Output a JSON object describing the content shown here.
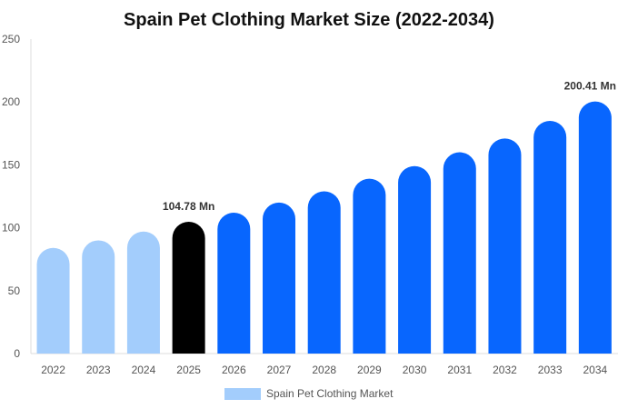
{
  "chart_data": {
    "type": "bar",
    "title": "Spain Pet Clothing Market Size (2022-2034)",
    "xlabel": "",
    "ylabel": "",
    "categories": [
      "2022",
      "2023",
      "2024",
      "2025",
      "2026",
      "2027",
      "2028",
      "2029",
      "2030",
      "2031",
      "2032",
      "2033",
      "2034"
    ],
    "series": [
      {
        "name": "Spain Pet Clothing Market",
        "values": [
          84,
          90,
          97,
          104.78,
          112,
          120,
          129,
          139,
          149,
          160,
          171,
          185,
          200.41
        ]
      }
    ],
    "ylim": [
      0,
      250
    ],
    "yticks": [
      0,
      50,
      100,
      150,
      200,
      250
    ],
    "data_labels": [
      {
        "index": 3,
        "text": "104.78 Mn"
      },
      {
        "index": 12,
        "text": "200.41 Mn"
      }
    ],
    "bar_colors": [
      "#a3cdfc",
      "#a3cdfc",
      "#a3cdfc",
      "#000000",
      "#0866fe",
      "#0866fe",
      "#0866fe",
      "#0866fe",
      "#0866fe",
      "#0866fe",
      "#0866fe",
      "#0866fe",
      "#0866fe"
    ],
    "legend_color": "#a3cdfc",
    "axis_color": "#dddddd",
    "grid": false,
    "legend_position": "bottom"
  }
}
